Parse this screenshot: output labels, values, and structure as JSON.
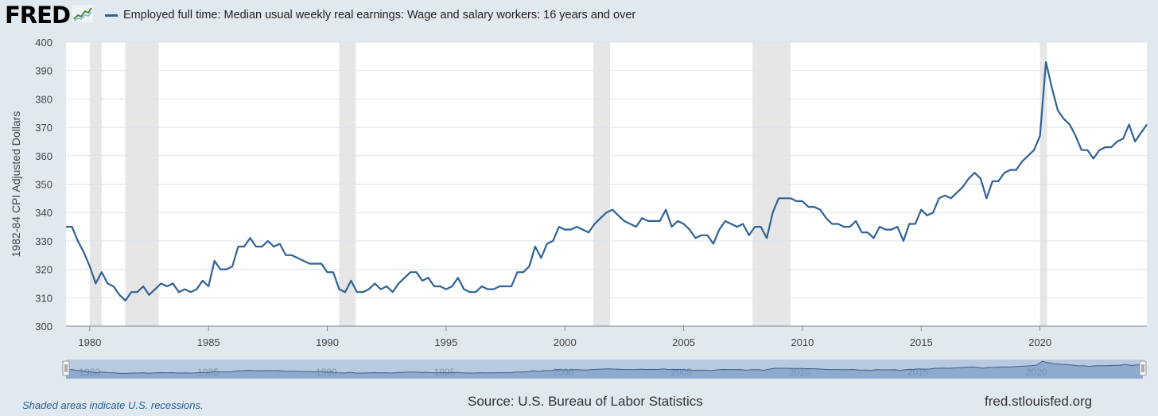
{
  "header": {
    "logo_text": "FRED",
    "logo_icon": "chart-line-icon",
    "legend_label": "Employed full time: Median usual weekly real earnings: Wage and salary workers: 16 years and over"
  },
  "footer": {
    "recession_note": "Shaded areas indicate U.S. recessions.",
    "source": "Source: U.S. Bureau of Labor Statistics",
    "url": "fred.stlouisfed.org"
  },
  "colors": {
    "line": "#2f6296",
    "background": "#e1e9f0",
    "plot_bg": "#ffffff",
    "recession": "#e6e6e6",
    "grid": "#dde3e9",
    "navigator": "#a9bfdb"
  },
  "chart_data": {
    "type": "line",
    "title": "",
    "xlabel": "",
    "ylabel": "1982-84 CPI Adjusted Dollars",
    "ylim": [
      300,
      400
    ],
    "xlim": [
      1979.0,
      2024.5
    ],
    "yticks": [
      300,
      310,
      320,
      330,
      340,
      350,
      360,
      370,
      380,
      390,
      400
    ],
    "xticks": [
      1980,
      1985,
      1990,
      1995,
      2000,
      2005,
      2010,
      2015,
      2020
    ],
    "grid": true,
    "legend_position": "top",
    "recessions": [
      [
        1980.0,
        1980.5
      ],
      [
        1981.5,
        1982.9
      ],
      [
        1990.5,
        1991.2
      ],
      [
        2001.2,
        2001.9
      ],
      [
        2007.9,
        2009.5
      ],
      [
        2020.0,
        2020.3
      ]
    ],
    "series": [
      {
        "name": "Employed full time: Median usual weekly real earnings: Wage and salary workers: 16 years and over",
        "x": [
          1979.0,
          1979.25,
          1979.5,
          1979.75,
          1980.0,
          1980.25,
          1980.5,
          1980.75,
          1981.0,
          1981.25,
          1981.5,
          1981.75,
          1982.0,
          1982.25,
          1982.5,
          1982.75,
          1983.0,
          1983.25,
          1983.5,
          1983.75,
          1984.0,
          1984.25,
          1984.5,
          1984.75,
          1985.0,
          1985.25,
          1985.5,
          1985.75,
          1986.0,
          1986.25,
          1986.5,
          1986.75,
          1987.0,
          1987.25,
          1987.5,
          1987.75,
          1988.0,
          1988.25,
          1988.5,
          1988.75,
          1989.0,
          1989.25,
          1989.5,
          1989.75,
          1990.0,
          1990.25,
          1990.5,
          1990.75,
          1991.0,
          1991.25,
          1991.5,
          1991.75,
          1992.0,
          1992.25,
          1992.5,
          1992.75,
          1993.0,
          1993.25,
          1993.5,
          1993.75,
          1994.0,
          1994.25,
          1994.5,
          1994.75,
          1995.0,
          1995.25,
          1995.5,
          1995.75,
          1996.0,
          1996.25,
          1996.5,
          1996.75,
          1997.0,
          1997.25,
          1997.5,
          1997.75,
          1998.0,
          1998.25,
          1998.5,
          1998.75,
          1999.0,
          1999.25,
          1999.5,
          1999.75,
          2000.0,
          2000.25,
          2000.5,
          2000.75,
          2001.0,
          2001.25,
          2001.5,
          2001.75,
          2002.0,
          2002.25,
          2002.5,
          2002.75,
          2003.0,
          2003.25,
          2003.5,
          2003.75,
          2004.0,
          2004.25,
          2004.5,
          2004.75,
          2005.0,
          2005.25,
          2005.5,
          2005.75,
          2006.0,
          2006.25,
          2006.5,
          2006.75,
          2007.0,
          2007.25,
          2007.5,
          2007.75,
          2008.0,
          2008.25,
          2008.5,
          2008.75,
          2009.0,
          2009.25,
          2009.5,
          2009.75,
          2010.0,
          2010.25,
          2010.5,
          2010.75,
          2011.0,
          2011.25,
          2011.5,
          2011.75,
          2012.0,
          2012.25,
          2012.5,
          2012.75,
          2013.0,
          2013.25,
          2013.5,
          2013.75,
          2014.0,
          2014.25,
          2014.5,
          2014.75,
          2015.0,
          2015.25,
          2015.5,
          2015.75,
          2016.0,
          2016.25,
          2016.5,
          2016.75,
          2017.0,
          2017.25,
          2017.5,
          2017.75,
          2018.0,
          2018.25,
          2018.5,
          2018.75,
          2019.0,
          2019.25,
          2019.5,
          2019.75,
          2020.0,
          2020.25,
          2020.5,
          2020.75,
          2021.0,
          2021.25,
          2021.5,
          2021.75,
          2022.0,
          2022.25,
          2022.5,
          2022.75,
          2023.0,
          2023.25,
          2023.5,
          2023.75,
          2024.0,
          2024.25,
          2024.5
        ],
        "values": [
          335,
          335,
          330,
          326,
          321,
          315,
          319,
          315,
          314,
          311,
          309,
          312,
          312,
          314,
          311,
          313,
          315,
          314,
          315,
          312,
          313,
          312,
          313,
          316,
          314,
          323,
          320,
          320,
          321,
          328,
          328,
          331,
          328,
          328,
          330,
          328,
          329,
          325,
          325,
          324,
          323,
          322,
          322,
          322,
          319,
          319,
          313,
          312,
          316,
          312,
          312,
          313,
          315,
          313,
          314,
          312,
          315,
          317,
          319,
          319,
          316,
          317,
          314,
          314,
          313,
          314,
          317,
          313,
          312,
          312,
          314,
          313,
          313,
          314,
          314,
          314,
          319,
          319,
          321,
          328,
          324,
          329,
          330,
          335,
          334,
          334,
          335,
          334,
          333,
          336,
          338,
          340,
          341,
          339,
          337,
          336,
          335,
          338,
          337,
          337,
          337,
          341,
          335,
          337,
          336,
          334,
          331,
          332,
          332,
          329,
          334,
          337,
          336,
          335,
          336,
          332,
          335,
          335,
          331,
          340,
          345,
          345,
          345,
          344,
          344,
          342,
          342,
          341,
          338,
          336,
          336,
          335,
          335,
          337,
          333,
          333,
          331,
          335,
          334,
          334,
          335,
          330,
          336,
          336,
          341,
          339,
          340,
          345,
          346,
          345,
          347,
          349,
          352,
          354,
          352,
          345,
          351,
          351,
          354,
          355,
          355,
          358,
          360,
          362,
          367,
          393,
          384,
          376,
          373,
          371,
          367,
          362,
          362,
          359,
          362,
          363,
          363,
          365,
          366,
          371,
          365,
          368,
          371
        ]
      }
    ]
  }
}
